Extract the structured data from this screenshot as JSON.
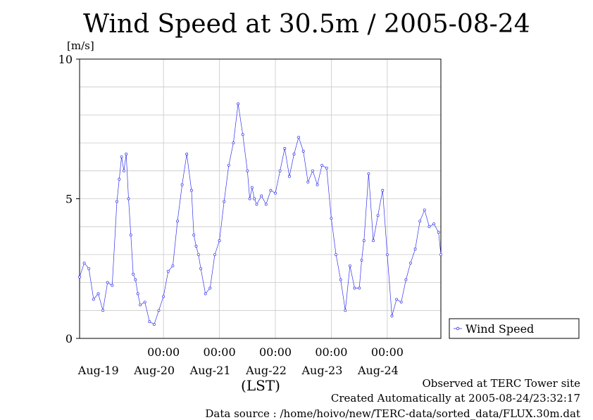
{
  "chart_data": {
    "type": "line",
    "title": "Wind Speed at 30.5m / 2005-08-24",
    "ylabel": "[m/s]",
    "xlabel": "(LST)",
    "ylim": [
      0,
      10
    ],
    "y_ticks": [
      0,
      5,
      10
    ],
    "xlim": [
      "2005-08-18T12:00",
      "2005-08-24T23:00"
    ],
    "x_tick_time_labels": [
      "00:00",
      "00:00",
      "00:00",
      "00:00",
      "00:00"
    ],
    "x_date_labels": [
      "Aug-19",
      "Aug-20",
      "Aug-21",
      "Aug-22",
      "Aug-23",
      "Aug-24"
    ],
    "grid": true,
    "legend": "right",
    "series": [
      {
        "name": "Wind Speed",
        "color": "#3333ee",
        "x": [
          "2005-08-18T12:00",
          "2005-08-18T14:00",
          "2005-08-18T16:00",
          "2005-08-18T18:00",
          "2005-08-18T20:00",
          "2005-08-18T22:00",
          "2005-08-19T00:00",
          "2005-08-19T02:00",
          "2005-08-19T04:00",
          "2005-08-19T05:00",
          "2005-08-19T06:00",
          "2005-08-19T07:00",
          "2005-08-19T08:00",
          "2005-08-19T09:00",
          "2005-08-19T10:00",
          "2005-08-19T11:00",
          "2005-08-19T12:00",
          "2005-08-19T13:00",
          "2005-08-19T14:00",
          "2005-08-19T16:00",
          "2005-08-19T18:00",
          "2005-08-19T20:00",
          "2005-08-19T22:00",
          "2005-08-20T00:00",
          "2005-08-20T02:00",
          "2005-08-20T04:00",
          "2005-08-20T06:00",
          "2005-08-20T08:00",
          "2005-08-20T10:00",
          "2005-08-20T12:00",
          "2005-08-20T13:00",
          "2005-08-20T14:00",
          "2005-08-20T15:00",
          "2005-08-20T16:00",
          "2005-08-20T18:00",
          "2005-08-20T20:00",
          "2005-08-20T22:00",
          "2005-08-21T00:00",
          "2005-08-21T02:00",
          "2005-08-21T04:00",
          "2005-08-21T06:00",
          "2005-08-21T08:00",
          "2005-08-21T10:00",
          "2005-08-21T12:00",
          "2005-08-21T13:00",
          "2005-08-21T14:00",
          "2005-08-21T15:00",
          "2005-08-21T16:00",
          "2005-08-21T18:00",
          "2005-08-21T20:00",
          "2005-08-21T22:00",
          "2005-08-22T00:00",
          "2005-08-22T02:00",
          "2005-08-22T04:00",
          "2005-08-22T06:00",
          "2005-08-22T08:00",
          "2005-08-22T10:00",
          "2005-08-22T12:00",
          "2005-08-22T14:00",
          "2005-08-22T16:00",
          "2005-08-22T18:00",
          "2005-08-22T20:00",
          "2005-08-22T22:00",
          "2005-08-23T00:00",
          "2005-08-23T02:00",
          "2005-08-23T04:00",
          "2005-08-23T06:00",
          "2005-08-23T08:00",
          "2005-08-23T10:00",
          "2005-08-23T12:00",
          "2005-08-23T13:00",
          "2005-08-23T14:00",
          "2005-08-23T16:00",
          "2005-08-23T18:00",
          "2005-08-23T20:00",
          "2005-08-23T22:00",
          "2005-08-24T00:00",
          "2005-08-24T02:00",
          "2005-08-24T04:00",
          "2005-08-24T06:00",
          "2005-08-24T08:00",
          "2005-08-24T10:00",
          "2005-08-24T12:00",
          "2005-08-24T14:00",
          "2005-08-24T16:00",
          "2005-08-24T18:00",
          "2005-08-24T20:00",
          "2005-08-24T22:00",
          "2005-08-24T23:00"
        ],
        "y": [
          2.2,
          2.7,
          2.5,
          1.4,
          1.6,
          1.0,
          2.0,
          1.9,
          4.9,
          5.7,
          6.5,
          6.0,
          6.6,
          5.0,
          3.7,
          2.3,
          2.1,
          1.6,
          1.2,
          1.3,
          0.6,
          0.5,
          1.0,
          1.5,
          2.4,
          2.6,
          4.2,
          5.5,
          6.6,
          5.3,
          3.7,
          3.3,
          3.0,
          2.5,
          1.6,
          1.8,
          3.0,
          3.5,
          4.9,
          6.2,
          7.0,
          8.4,
          7.3,
          6.0,
          5.0,
          5.4,
          5.0,
          4.8,
          5.1,
          4.8,
          5.3,
          5.2,
          6.0,
          6.8,
          5.8,
          6.6,
          7.2,
          6.7,
          5.6,
          6.0,
          5.5,
          6.2,
          6.1,
          4.3,
          3.0,
          2.1,
          1.0,
          2.6,
          1.8,
          1.8,
          2.8,
          3.5,
          5.9,
          3.5,
          4.4,
          5.3,
          3.0,
          0.8,
          1.4,
          1.3,
          2.1,
          2.7,
          3.2,
          4.2,
          4.6,
          4.0,
          4.1,
          3.8,
          3.0
        ]
      }
    ]
  },
  "footer": {
    "observed": "Observed at TERC Tower site",
    "created": "Created Automatically at 2005-08-24/23:32:17",
    "source": "Data source : /home/hoivo/new/TERC-data/sorted_data/FLUX.30m.dat"
  }
}
